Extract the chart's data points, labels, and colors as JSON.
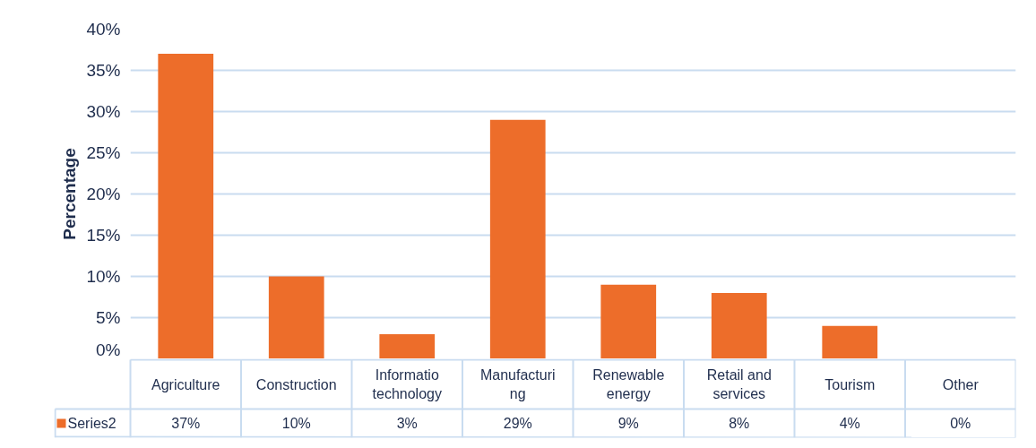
{
  "chart_data": {
    "type": "bar",
    "ylabel": "Percentage",
    "categories": [
      "Agriculture",
      "Construction",
      "Informatio technology",
      "Manufacturing",
      "Renewable energy",
      "Retail and services",
      "Tourism",
      "Other"
    ],
    "series": [
      {
        "name": "Series2",
        "color": "#ed6d2a",
        "values": [
          37,
          10,
          3,
          29,
          9,
          8,
          4,
          0
        ],
        "value_labels": [
          "37%",
          "10%",
          "3%",
          "29%",
          "9%",
          "8%",
          "4%",
          "0%"
        ]
      }
    ],
    "ylim": [
      0,
      40
    ],
    "yticks": [
      {
        "value": 0,
        "label": "0%"
      },
      {
        "value": 5,
        "label": "5%"
      },
      {
        "value": 10,
        "label": "10%"
      },
      {
        "value": 15,
        "label": "15%"
      },
      {
        "value": 20,
        "label": "20%"
      },
      {
        "value": 25,
        "label": "25%"
      },
      {
        "value": 30,
        "label": "30%"
      },
      {
        "value": 35,
        "label": "35%"
      },
      {
        "value": 40,
        "label": "40%"
      }
    ],
    "grid": "y",
    "legend": "bottom left"
  }
}
